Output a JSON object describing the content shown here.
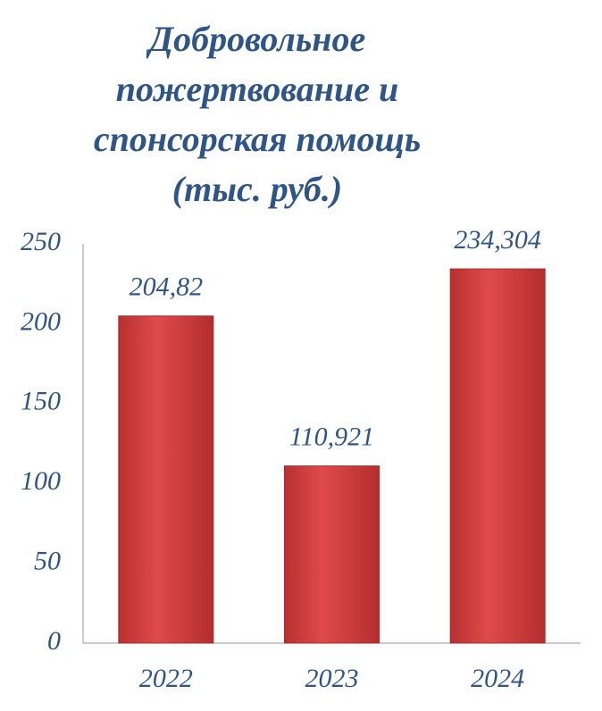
{
  "chart_data": {
    "type": "bar",
    "title": [
      "Добровольное",
      "пожертвование и",
      "спонсорская помощь",
      "(тыс. руб.)"
    ],
    "categories": [
      "2022",
      "2023",
      "2024"
    ],
    "values": [
      204.82,
      110.921,
      234.304
    ],
    "value_labels": [
      "204,82",
      "110,921",
      "234,304"
    ],
    "color": "#d94141",
    "ylim": [
      0,
      250
    ],
    "yticks": [
      0,
      50,
      100,
      150,
      200,
      250
    ],
    "grid": false
  }
}
